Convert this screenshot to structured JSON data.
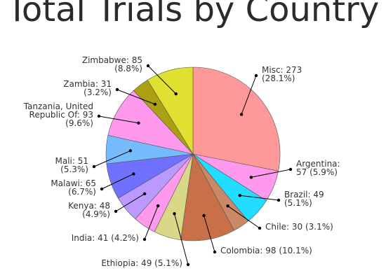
{
  "chart_data": {
    "type": "pie",
    "title": "Total Trials by Country",
    "unit": "trials",
    "slices": [
      {
        "name": "Misc",
        "value": 273,
        "percent": "28.1%",
        "color": "#ff9999",
        "label_lines": [
          "Misc: 273",
          "(28.1%)"
        ]
      },
      {
        "name": "Argentina",
        "value": 57,
        "percent": "5.9%",
        "color": "#ff99ee",
        "label_lines": [
          "Argentina:",
          "57 (5.9%)"
        ]
      },
      {
        "name": "Brazil",
        "value": 49,
        "percent": "5.1%",
        "color": "#22ddff",
        "label_lines": [
          "Brazil: 49",
          "(5.1%)"
        ]
      },
      {
        "name": "Chile",
        "value": 30,
        "percent": "3.1%",
        "color": "#cc8866",
        "label_lines": [
          "Chile: 30 (3.1%)"
        ]
      },
      {
        "name": "Colombia",
        "value": 98,
        "percent": "10.1%",
        "color": "#c87048",
        "label_lines": [
          "Colombia: 98 (10.1%)"
        ]
      },
      {
        "name": "Ethiopia",
        "value": 49,
        "percent": "5.1%",
        "color": "#d8d888",
        "label_lines": [
          "Ethiopia: 49 (5.1%)"
        ]
      },
      {
        "name": "India",
        "value": 41,
        "percent": "4.2%",
        "color": "#ff99ee",
        "label_lines": [
          "India: 41 (4.2%)"
        ]
      },
      {
        "name": "Kenya",
        "value": 48,
        "percent": "4.9%",
        "color": "#bb99ff",
        "label_lines": [
          "Kenya: 48",
          "(4.9%)"
        ]
      },
      {
        "name": "Malawi",
        "value": 65,
        "percent": "6.7%",
        "color": "#7070ff",
        "label_lines": [
          "Malawi: 65",
          "(6.7%)"
        ]
      },
      {
        "name": "Mali",
        "value": 51,
        "percent": "5.3%",
        "color": "#77bbff",
        "label_lines": [
          "Mali: 51",
          "(5.3%)"
        ]
      },
      {
        "name": "Tanzania, United Republic Of",
        "value": 93,
        "percent": "9.6%",
        "color": "#ff99ee",
        "label_lines": [
          "Tanzania, United",
          "Republic Of: 93",
          "(9.6%)"
        ]
      },
      {
        "name": "Zambia",
        "value": 31,
        "percent": "3.2%",
        "color": "#aaa011",
        "label_lines": [
          "Zambia: 31",
          "(3.2%)"
        ]
      },
      {
        "name": "Zimbabwe",
        "value": 85,
        "percent": "8.8%",
        "color": "#e0e030",
        "label_lines": [
          "Zimbabwe: 85",
          "(8.8%)"
        ]
      }
    ],
    "legend": "none"
  }
}
